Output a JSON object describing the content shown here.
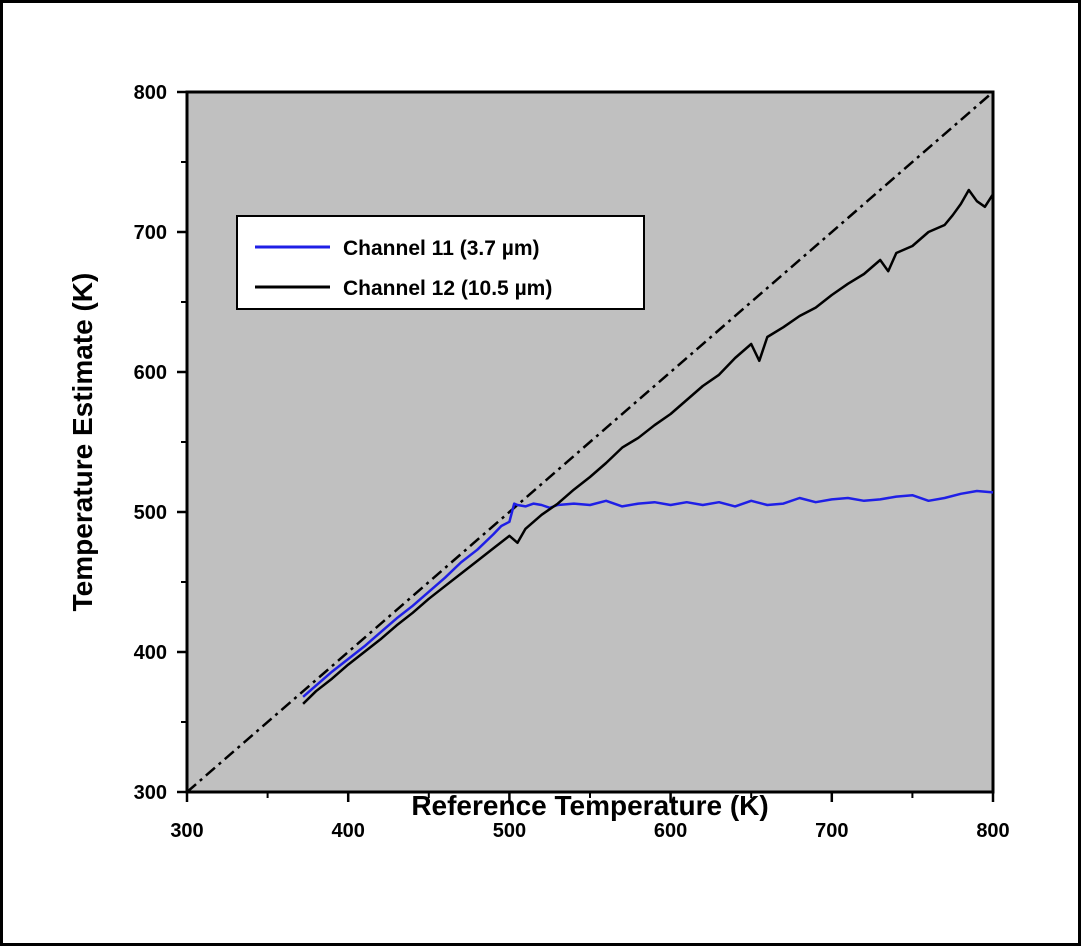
{
  "chart_data": {
    "type": "line",
    "xlabel": "Reference Temperature (K)",
    "ylabel": "Temperature Estimate (K)",
    "xlim": [
      300,
      800
    ],
    "ylim": [
      300,
      800
    ],
    "x_ticks": [
      "300",
      "400",
      "500",
      "600",
      "700",
      "800"
    ],
    "y_ticks": [
      "300",
      "400",
      "500",
      "600",
      "700",
      "800"
    ],
    "grid": false,
    "background": "#c0c0c0",
    "legend_position": "top-left",
    "reference_line": {
      "style": "dash-dot",
      "color": "#000000",
      "x": [
        300,
        800
      ],
      "y": [
        300,
        800
      ]
    },
    "series": [
      {
        "name": "Channel 11 (3.7 µm)",
        "color": "#1f1fe6",
        "x": [
          372,
          380,
          390,
          400,
          410,
          420,
          430,
          440,
          450,
          460,
          470,
          480,
          490,
          495,
          500,
          503,
          505,
          510,
          515,
          520,
          525,
          530,
          540,
          550,
          560,
          570,
          580,
          590,
          600,
          610,
          620,
          630,
          640,
          650,
          660,
          670,
          680,
          690,
          700,
          710,
          720,
          730,
          740,
          750,
          760,
          770,
          780,
          790,
          800
        ],
        "y": [
          368,
          376,
          386,
          395,
          404,
          414,
          424,
          433,
          443,
          453,
          464,
          473,
          484,
          490,
          493,
          506,
          505,
          504,
          506,
          505,
          503,
          505,
          506,
          505,
          508,
          504,
          506,
          507,
          505,
          507,
          505,
          507,
          504,
          508,
          505,
          506,
          510,
          507,
          509,
          510,
          508,
          509,
          511,
          512,
          508,
          510,
          513,
          515,
          514
        ]
      },
      {
        "name": "Channel 12 (10.5 µm)",
        "color": "#000000",
        "x": [
          372,
          380,
          390,
          400,
          410,
          420,
          430,
          440,
          450,
          460,
          470,
          480,
          490,
          500,
          505,
          510,
          520,
          530,
          540,
          550,
          560,
          570,
          580,
          590,
          600,
          610,
          620,
          630,
          640,
          650,
          655,
          660,
          670,
          680,
          690,
          700,
          710,
          720,
          730,
          735,
          740,
          750,
          760,
          770,
          775,
          780,
          785,
          790,
          795,
          800
        ],
        "y": [
          363,
          372,
          381,
          391,
          400,
          409,
          419,
          428,
          438,
          447,
          456,
          465,
          474,
          483,
          478,
          488,
          498,
          506,
          516,
          525,
          535,
          546,
          553,
          562,
          570,
          580,
          590,
          598,
          610,
          620,
          608,
          625,
          632,
          640,
          646,
          655,
          663,
          670,
          680,
          672,
          685,
          690,
          700,
          705,
          712,
          720,
          730,
          722,
          718,
          727
        ]
      }
    ]
  }
}
